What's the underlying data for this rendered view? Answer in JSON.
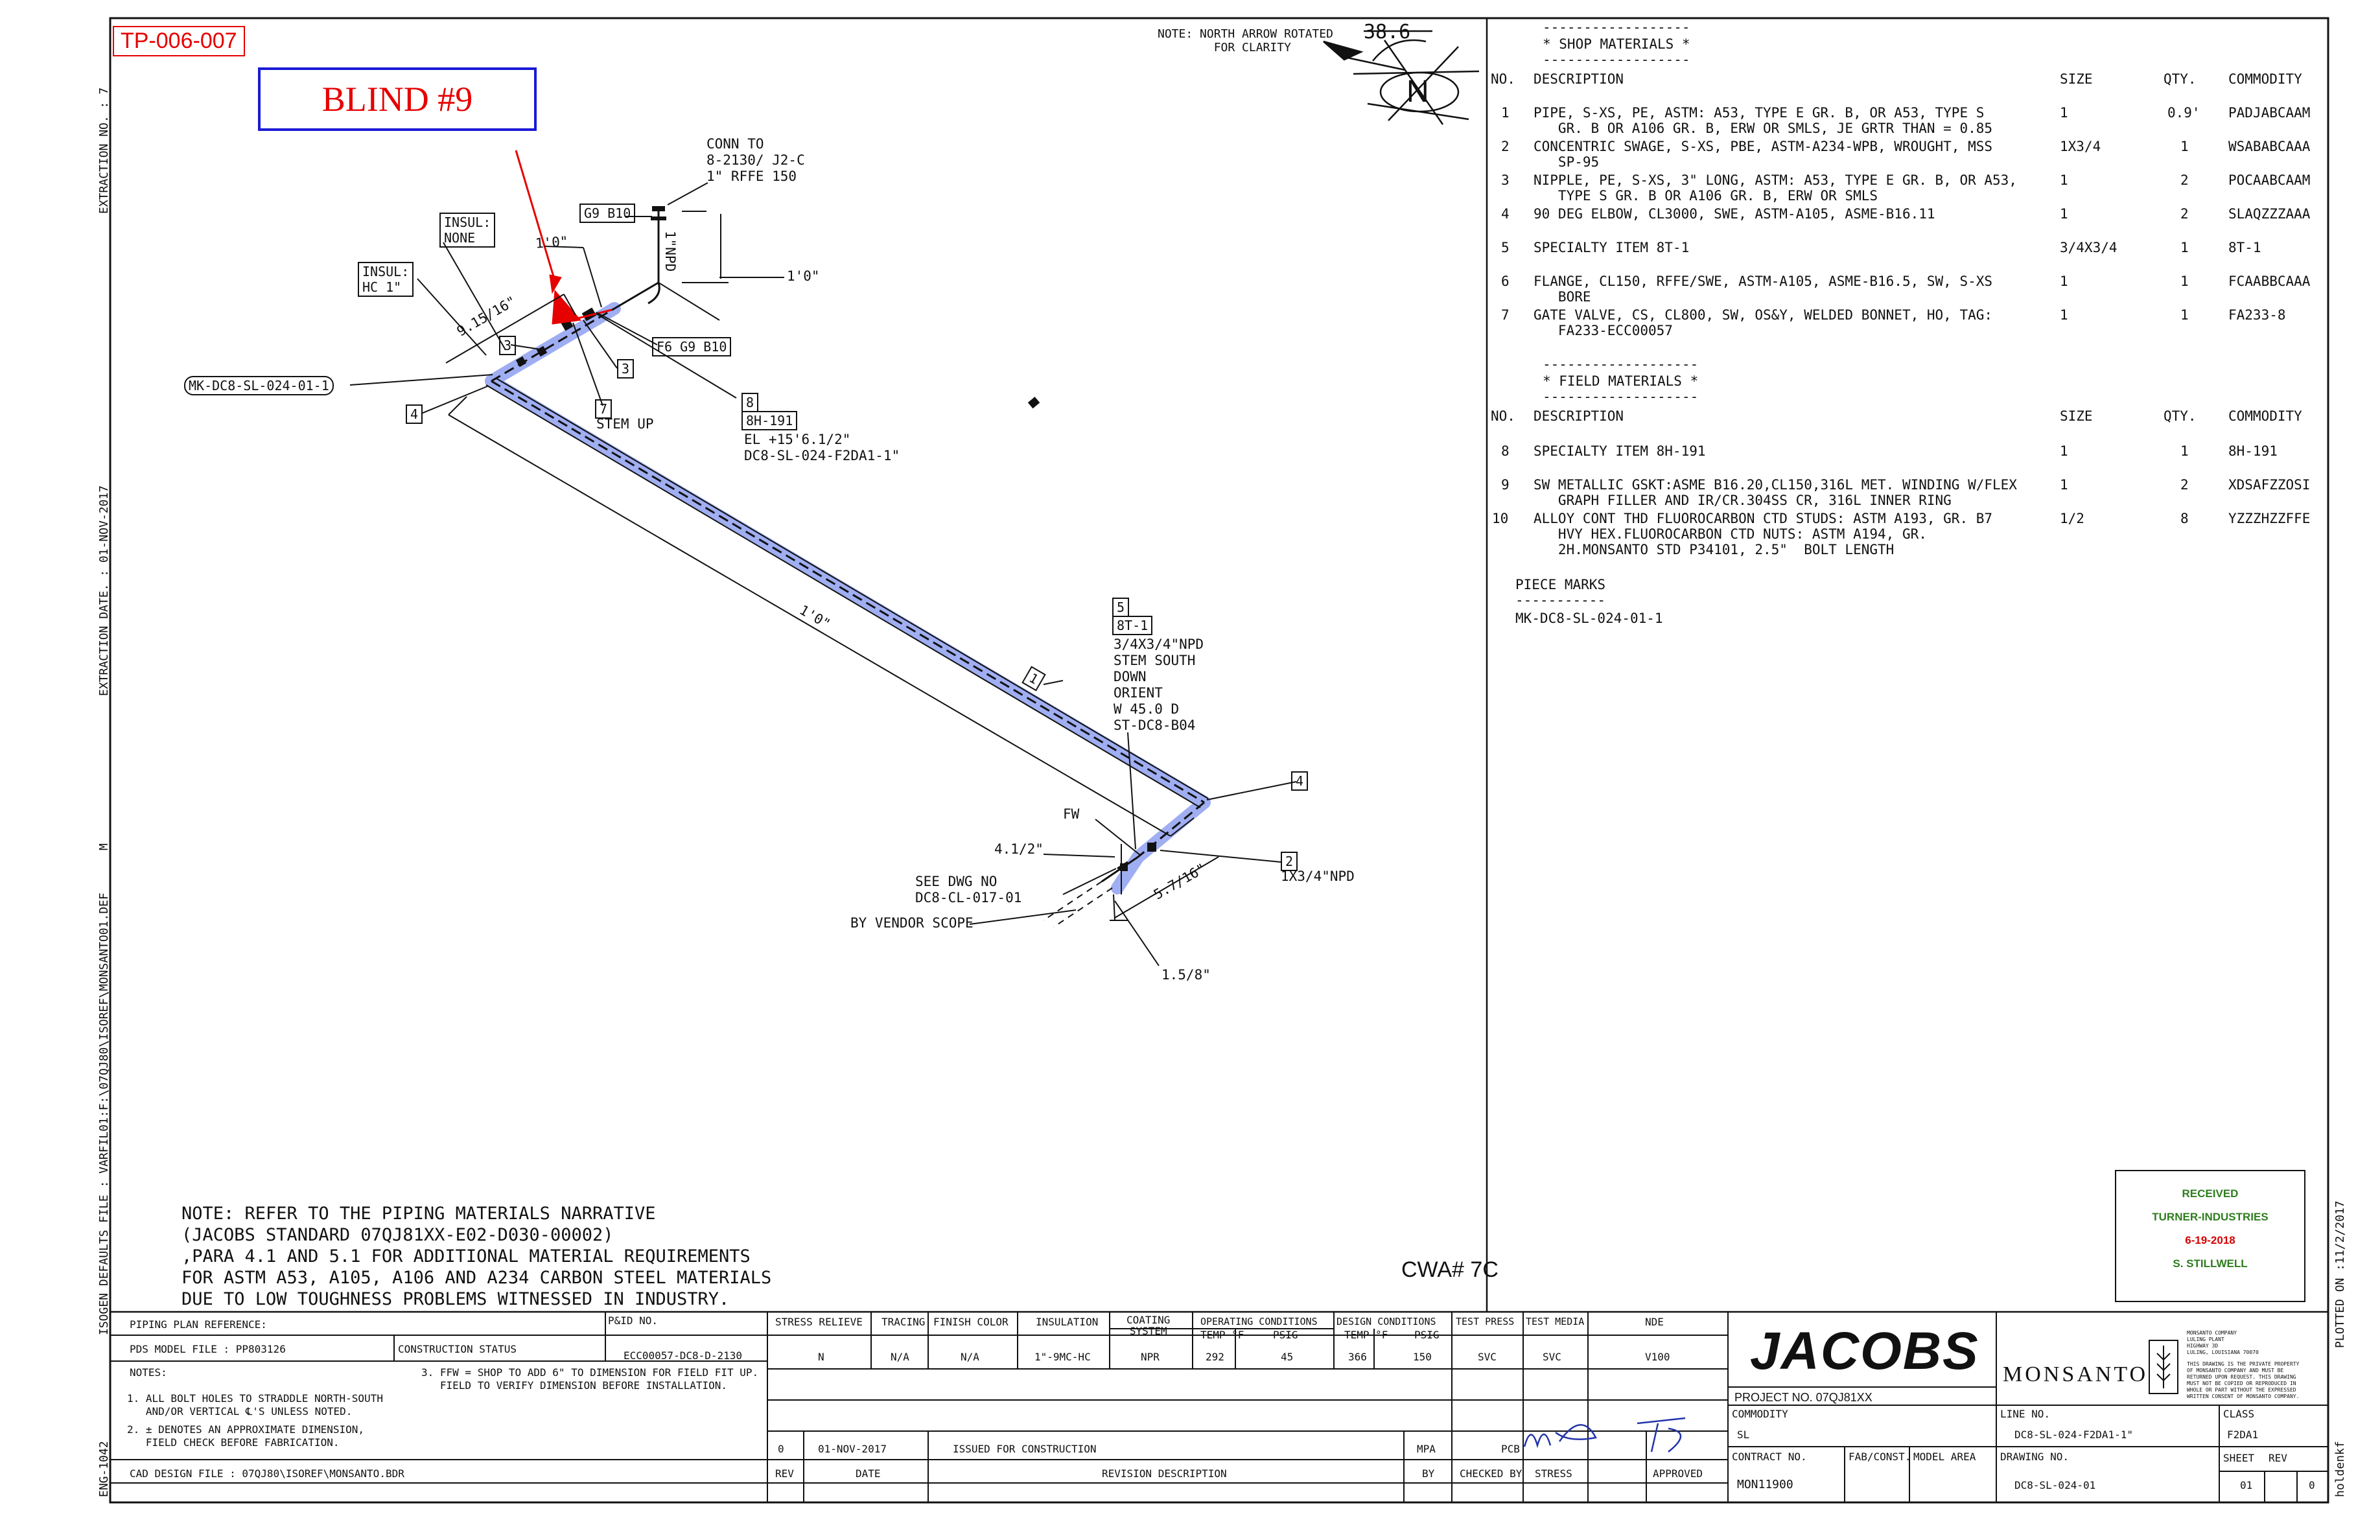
{
  "header": {
    "tp_label": "TP-006-007",
    "blind_label": "BLIND #9"
  },
  "north": {
    "note": "NOTE: NORTH ARROW ROTATED\n        FOR CLARITY",
    "angle": "38.6",
    "letter": "N"
  },
  "side_margin": {
    "extraction_no": "EXTRACTION NO. : 7",
    "extraction_date": "EXTRACTION DATE. : 01-NOV-2017",
    "m": "M",
    "isogen_file": "ISOGEN DEFAULTS FILE : VARFIL01:F:\\07QJ80\\ISOREF\\MONSANTO01.DEF",
    "eng": "ENG-1042",
    "plotted": "PLOTTED ON :11/2/2017",
    "user": "holdenkf"
  },
  "iso": {
    "conn_to": "CONN TO\n8-2130/ J2-C\n1\" RFFE 150",
    "g9b10_top": "G9 B10",
    "insul_none": "INSUL:\nNONE",
    "insul_hc": "INSUL:\nHC 1\"",
    "dim_1_0_top": "1'0\"",
    "dim_1_0_right": "1'0\"",
    "npd_1": "1\"NPD",
    "dim_9_15_16": "9.15/16\"",
    "f6g9b10": "F6 G9 B10",
    "piece_mark_tag": "MK-DC8-SL-024-01-1",
    "tag_3a": "3",
    "tag_3b": "3",
    "tag_4a": "4",
    "tag_7": "7",
    "stem_up": "STEM UP",
    "tag_8": "8",
    "tag_8h": "8H-191",
    "el_text": "EL +15'6.1/2\"\nDC8-SL-024-F2DA1-1\"",
    "dim_1_0_long": "1'0\"",
    "tag_1": "1",
    "tag_5": "5",
    "tag_8t": "8T-1",
    "swage_text": "3/4X3/4\"NPD\nSTEM SOUTH\nDOWN\nORIENT\nW 45.0 D\nST-DC8-B04",
    "tag_4b": "4",
    "fw": "FW",
    "dim_4_1_2": "4.1/2\"",
    "see_dwg": "SEE DWG NO\nDC8-CL-017-01",
    "vendor": "BY VENDOR SCOPE",
    "dim_5_7_16": "5.7/16\"",
    "tag_2": "2",
    "npd_1x34": "1X3/4\"NPD",
    "dim_1_5_8": "1.5/8\""
  },
  "note": {
    "lines": [
      "NOTE: REFER TO THE PIPING MATERIALS NARRATIVE",
      "(JACOBS STANDARD 07QJ81XX-E02-D030-00002)",
      ",PARA 4.1 AND 5.1 FOR ADDITIONAL MATERIAL REQUIREMENTS",
      "FOR ASTM A53, A105, A106 AND A234 CARBON STEEL MATERIALS",
      "DUE TO LOW TOUGHNESS PROBLEMS WITNESSED IN INDUSTRY."
    ],
    "cwa": "CWA# 7C"
  },
  "shop": {
    "title": "* SHOP MATERIALS *",
    "cols": [
      "NO.",
      "DESCRIPTION",
      "SIZE",
      "QTY.",
      "COMMODITY"
    ],
    "rows": [
      {
        "no": "1",
        "desc": "PIPE, S-XS, PE, ASTM: A53, TYPE E GR. B, OR A53, TYPE S\n   GR. B OR A106 GR. B, ERW OR SMLS, JE GRTR THAN = 0.85",
        "size": "1",
        "qty": "0.9'",
        "com": "PADJABCAAM"
      },
      {
        "no": "2",
        "desc": "CONCENTRIC SWAGE, S-XS, PBE, ASTM-A234-WPB, WROUGHT, MSS\n   SP-95",
        "size": "1X3/4",
        "qty": "1",
        "com": "WSABABCAAA"
      },
      {
        "no": "3",
        "desc": "NIPPLE, PE, S-XS, 3\" LONG, ASTM: A53, TYPE E GR. B, OR A53,\n   TYPE S GR. B OR A106 GR. B, ERW OR SMLS",
        "size": "1",
        "qty": "2",
        "com": "POCAABCAAM"
      },
      {
        "no": "4",
        "desc": "90 DEG ELBOW, CL3000, SWE, ASTM-A105, ASME-B16.11",
        "size": "1",
        "qty": "2",
        "com": "SLAQZZZAAA"
      },
      {
        "no": "5",
        "desc": "SPECIALTY ITEM 8T-1",
        "size": "3/4X3/4",
        "qty": "1",
        "com": "8T-1"
      },
      {
        "no": "6",
        "desc": "FLANGE, CL150, RFFE/SWE, ASTM-A105, ASME-B16.5, SW, S-XS\n   BORE",
        "size": "1",
        "qty": "1",
        "com": "FCAABBCAAA"
      },
      {
        "no": "7",
        "desc": "GATE VALVE, CS, CL800, SW, OS&Y, WELDED BONNET, HO, TAG:\n   FA233-ECC00057",
        "size": "1",
        "qty": "1",
        "com": "FA233-8"
      }
    ]
  },
  "field": {
    "title": "* FIELD MATERIALS *",
    "cols": [
      "NO.",
      "DESCRIPTION",
      "SIZE",
      "QTY.",
      "COMMODITY"
    ],
    "rows": [
      {
        "no": "8",
        "desc": "SPECIALTY ITEM 8H-191",
        "size": "1",
        "qty": "1",
        "com": "8H-191"
      },
      {
        "no": "9",
        "desc": "SW METALLIC GSKT:ASME B16.20,CL150,316L MET. WINDING W/FLEX\n   GRAPH FILLER AND IR/CR.304SS CR, 316L INNER RING",
        "size": "1",
        "qty": "2",
        "com": "XDSAFZZOSI"
      },
      {
        "no": "10",
        "desc": "ALLOY CONT THD FLUOROCARBON CTD STUDS: ASTM A193, GR. B7\n   HVY HEX.FLUOROCARBON CTD NUTS: ASTM A194, GR.\n   2H.MONSANTO STD P34101, 2.5\"  BOLT LENGTH",
        "size": "1/2",
        "qty": "8",
        "com": "YZZZHZZFFE"
      }
    ],
    "piece_marks_title": "PIECE MARKS",
    "piece_marks_sep": "-----------",
    "piece_marks_value": "MK-DC8-SL-024-01-1"
  },
  "stamp": {
    "line1": "RECEIVED",
    "line2": "TURNER-INDUSTRIES",
    "line3": "6-19-2018",
    "line4": "S. STILLWELL"
  },
  "titleblock": {
    "piping_ref": "PIPING PLAN REFERENCE:",
    "pid_no_label": "P&ID NO.",
    "pid_no": "ECC00057-DC8-D-2130",
    "pds_file": "PDS MODEL FILE : PP803126",
    "constr_status": "CONSTRUCTION STATUS",
    "notes_label": "NOTES:",
    "note1": "1. ALL BOLT HOLES TO STRADDLE NORTH-SOUTH\n   AND/OR VERTICAL ℄'S UNLESS NOTED.",
    "note2": "2. ± DENOTES AN APPROXIMATE DIMENSION,\n   FIELD CHECK BEFORE FABRICATION.",
    "note3": "3. FFW = SHOP TO ADD 6\" TO DIMENSION FOR FIELD FIT UP.\n   FIELD TO VERIFY DIMENSION BEFORE INSTALLATION.",
    "cad_file": "CAD DESIGN FILE : 07QJ80\\ISOREF\\MONSANTO.BDR",
    "hdr": {
      "stress_relieve": "STRESS RELIEVE",
      "tracing": "TRACING",
      "finish_color": "FINISH COLOR",
      "insulation": "INSULATION",
      "coating": "COATING\nSYSTEM",
      "op_cond": "OPERATING CONDITIONS",
      "op_temp": "TEMP °F",
      "op_psig": "PSIG",
      "des_cond": "DESIGN CONDITIONS",
      "des_temp": "TEMP °F",
      "des_psig": "PSIG",
      "test_press": "TEST PRESS",
      "test_media": "TEST MEDIA",
      "nde": "NDE"
    },
    "vals": {
      "stress_relieve": "N",
      "tracing": "N/A",
      "finish_color": "N/A",
      "insulation": "1\"-9MC-HC",
      "coating": "NPR",
      "op_temp": "292",
      "op_psig": "45",
      "des_temp": "366",
      "des_psig": "150",
      "test_press": "SVC",
      "test_media": "SVC",
      "nde": "V100"
    },
    "rev_row": {
      "rev": "0",
      "date": "01-NOV-2017",
      "desc": "ISSUED FOR CONSTRUCTION",
      "by": "MPA",
      "checked": "PCB",
      "stress": "",
      "approved": ""
    },
    "rev_hdr": {
      "rev": "REV",
      "date": "DATE",
      "desc": "REVISION DESCRIPTION",
      "by": "BY",
      "checked": "CHECKED BY",
      "stress": "STRESS",
      "approved": "APPROVED"
    },
    "jacobs": "JACOBS",
    "project_no": "PROJECT NO. 07QJ81XX",
    "commodity_label": "COMMODITY",
    "commodity": "SL",
    "contract_label": "CONTRACT NO.",
    "contract": "MON11900",
    "fab_label": "FAB/CONST.",
    "model_label": "MODEL AREA",
    "monsanto": "MONSANTO",
    "monsanto_addr": "MONSANTO COMPANY\nLULING PLANT\nHIGHWAY 3D\nLULING, LOUISIANA 70070",
    "monsanto_notice": "THIS DRAWING IS THE PRIVATE PROPERTY\nOF MONSANTO COMPANY AND MUST BE\nRETURNED UPON REQUEST. THIS DRAWING\nMUST NOT BE COPIED OR REPRODUCED IN\nWHOLE OR PART WITHOUT THE EXPRESSED\nWRITTEN CONSENT OF MONSANTO COMPANY.",
    "line_label": "LINE NO.",
    "line_no": "DC8-SL-024-F2DA1-1\"",
    "class_label": "CLASS",
    "class": "F2DA1",
    "drawing_label": "DRAWING NO.",
    "drawing_no": "DC8-SL-024-01",
    "sheet_label": "SHEET",
    "sheet": "01",
    "rev_label": "REV",
    "rev": "0"
  },
  "colors": {
    "red": "#e60000",
    "blue": "#1a1ad6",
    "pipe_highlight": "#8fa0f0",
    "stamp_green": "#2e7d1e",
    "stamp_red": "#d40000"
  }
}
